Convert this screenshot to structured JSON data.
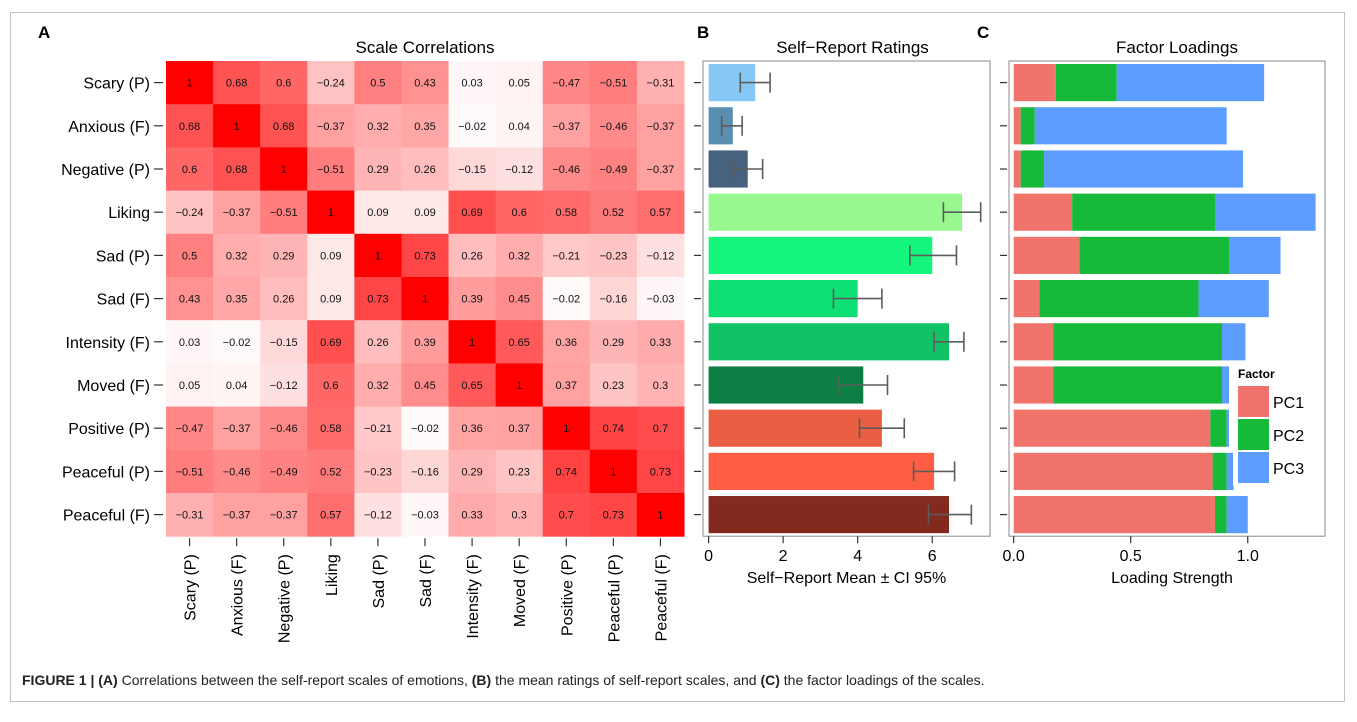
{
  "panel_letters": [
    "A",
    "B",
    "C"
  ],
  "panel_titles": {
    "a": "Scale Correlations",
    "b": "Self−Report Ratings",
    "c": "Factor Loadings"
  },
  "caption": {
    "lead": "FIGURE 1 |",
    "a_tag": "(A)",
    "a_text": " Correlations between the self-report scales of emotions, ",
    "b_tag": "(B)",
    "b_text": " the mean ratings of self-report scales, and ",
    "c_tag": "(C)",
    "c_text": " the factor loadings of the scales."
  },
  "colors": {
    "heat_low": "#ffffff",
    "heat_high": "#ff0000",
    "pc1": "#f0736c",
    "pc2": "#17b938",
    "pc3": "#5c9dff",
    "errorbar": "#5c5c5c"
  },
  "chart_data": [
    {
      "type": "heatmap",
      "title": "Scale Correlations",
      "rows": [
        "Scary (P)",
        "Anxious (F)",
        "Negative (P)",
        "Liking",
        "Sad (P)",
        "Sad (F)",
        "Intensity (F)",
        "Moved (F)",
        "Positive (P)",
        "Peaceful (P)",
        "Peaceful (F)"
      ],
      "columns": [
        "Scary (P)",
        "Anxious (F)",
        "Negative (P)",
        "Liking",
        "Sad (P)",
        "Sad (F)",
        "Intensity (F)",
        "Moved (F)",
        "Positive (P)",
        "Peaceful (P)",
        "Peaceful (F)"
      ],
      "values": [
        [
          1,
          0.68,
          0.6,
          -0.24,
          0.5,
          0.43,
          0.03,
          0.05,
          -0.47,
          -0.51,
          -0.31
        ],
        [
          0.68,
          1,
          0.68,
          -0.37,
          0.32,
          0.35,
          -0.02,
          0.04,
          -0.37,
          -0.46,
          -0.37
        ],
        [
          0.6,
          0.68,
          1,
          -0.51,
          0.29,
          0.26,
          -0.15,
          -0.12,
          -0.46,
          -0.49,
          -0.37
        ],
        [
          -0.24,
          -0.37,
          -0.51,
          1,
          0.09,
          0.09,
          0.69,
          0.6,
          0.58,
          0.52,
          0.57
        ],
        [
          0.5,
          0.32,
          0.29,
          0.09,
          1,
          0.73,
          0.26,
          0.32,
          -0.21,
          -0.23,
          -0.12
        ],
        [
          0.43,
          0.35,
          0.26,
          0.09,
          0.73,
          1,
          0.39,
          0.45,
          -0.02,
          -0.16,
          -0.03
        ],
        [
          0.03,
          -0.02,
          -0.15,
          0.69,
          0.26,
          0.39,
          1,
          0.65,
          0.36,
          0.29,
          0.33
        ],
        [
          0.05,
          0.04,
          -0.12,
          0.6,
          0.32,
          0.45,
          0.65,
          1,
          0.37,
          0.23,
          0.3
        ],
        [
          -0.47,
          -0.37,
          -0.46,
          0.58,
          -0.21,
          -0.02,
          0.36,
          0.37,
          1,
          0.74,
          0.7
        ],
        [
          -0.51,
          -0.46,
          -0.49,
          0.52,
          -0.23,
          -0.16,
          0.29,
          0.23,
          0.74,
          1,
          0.73
        ],
        [
          -0.31,
          -0.37,
          -0.37,
          0.57,
          -0.12,
          -0.03,
          0.33,
          0.3,
          0.7,
          0.73,
          1
        ]
      ],
      "color_scale": "absolute correlation, white to red"
    },
    {
      "type": "bar",
      "orientation": "horizontal",
      "title": "Self−Report Ratings",
      "xlabel": "Self−Report Mean ± CI 95%",
      "xlim": [
        -0.15,
        7.55
      ],
      "xticks": [
        0,
        2,
        4,
        6
      ],
      "categories": [
        "Scary (P)",
        "Anxious (F)",
        "Negative (P)",
        "Liking",
        "Sad (P)",
        "Sad (F)",
        "Intensity (F)",
        "Moved (F)",
        "Positive (P)",
        "Peaceful (P)",
        "Peaceful (F)"
      ],
      "values": [
        1.25,
        0.65,
        1.05,
        6.8,
        6.0,
        4.0,
        6.45,
        4.15,
        4.65,
        6.05,
        6.45
      ],
      "ci_low": [
        0.85,
        0.35,
        0.65,
        6.3,
        5.4,
        3.35,
        6.05,
        3.5,
        4.05,
        5.5,
        5.9
      ],
      "ci_high": [
        1.65,
        0.9,
        1.45,
        7.3,
        6.65,
        4.65,
        6.85,
        4.8,
        5.25,
        6.6,
        7.05
      ],
      "bar_colors": [
        "#86c8f5",
        "#5b8fb0",
        "#46627e",
        "#98f890",
        "#14f67c",
        "#0fe074",
        "#11c266",
        "#0d7f44",
        "#ea5e43",
        "#fe5f44",
        "#832a1e"
      ]
    },
    {
      "type": "bar",
      "orientation": "horizontal",
      "stacked": true,
      "title": "Factor Loadings",
      "xlabel": "Loading Strength",
      "xlim": [
        -0.02,
        1.33
      ],
      "xticks": [
        0.0,
        0.5,
        1.0
      ],
      "xtick_labels": [
        "0.0",
        "0.5",
        "1.0"
      ],
      "categories": [
        "Scary (P)",
        "Anxious (F)",
        "Negative (P)",
        "Liking",
        "Sad (P)",
        "Sad (F)",
        "Intensity (F)",
        "Moved (F)",
        "Positive (P)",
        "Peaceful (P)",
        "Peaceful (F)"
      ],
      "series": [
        {
          "name": "PC1",
          "values": [
            0.18,
            0.03,
            0.03,
            0.25,
            0.28,
            0.11,
            0.17,
            0.17,
            0.84,
            0.85,
            0.86
          ]
        },
        {
          "name": "PC2",
          "values": [
            0.26,
            0.06,
            0.1,
            0.61,
            0.64,
            0.68,
            0.72,
            0.72,
            0.07,
            0.06,
            0.05
          ]
        },
        {
          "name": "PC3",
          "values": [
            0.63,
            0.82,
            0.85,
            0.43,
            0.22,
            0.3,
            0.1,
            0.03,
            0.01,
            0.03,
            0.09
          ]
        }
      ],
      "legend": {
        "title": "Factor",
        "placement": "right",
        "entries": [
          "PC1",
          "PC2",
          "PC3"
        ]
      }
    }
  ]
}
